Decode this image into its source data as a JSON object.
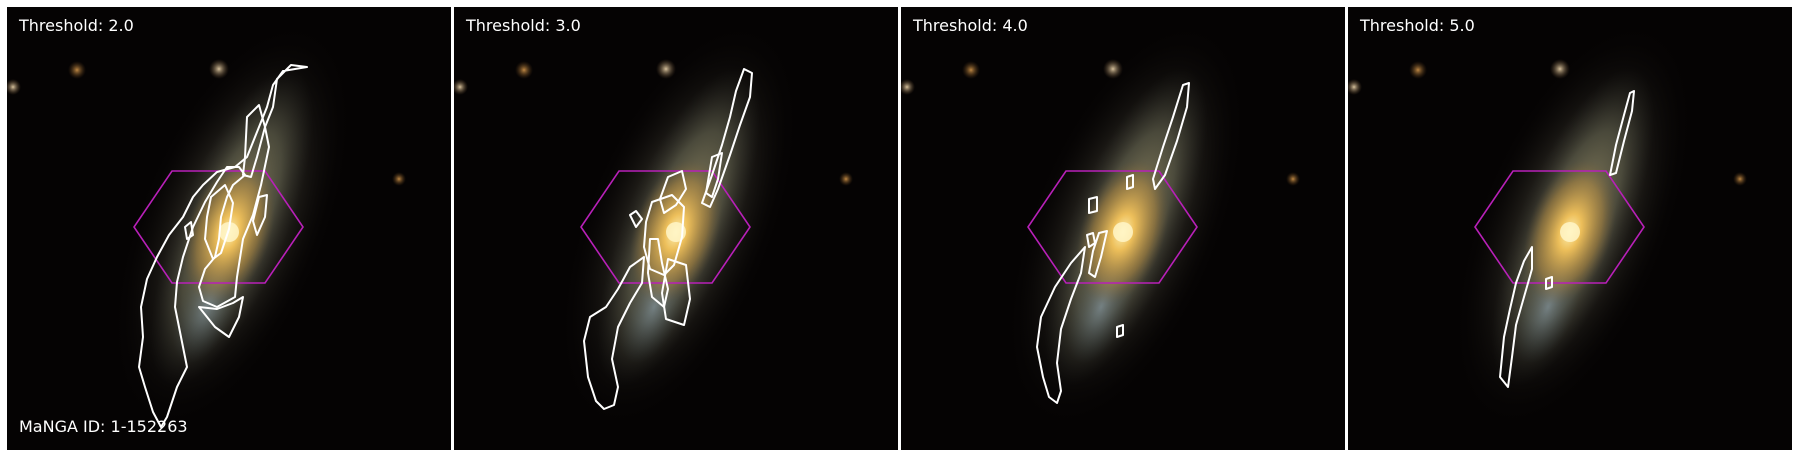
{
  "panels": [
    {
      "label": "Threshold: 2.0"
    },
    {
      "label": "Threshold: 3.0"
    },
    {
      "label": "Threshold: 4.0"
    },
    {
      "label": "Threshold: 5.0"
    }
  ],
  "manga_id": "MaNGA ID: 1-152263",
  "colors": {
    "contour": "#ffffff",
    "hexagon": "#b820b8",
    "background": "#050303",
    "galaxy_core": "#f2c25a",
    "galaxy_disk": "#8c8a6a"
  }
}
